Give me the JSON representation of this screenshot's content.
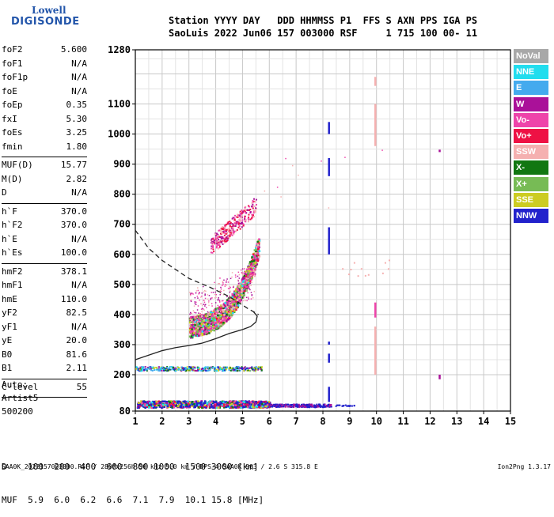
{
  "logo": {
    "line1": "Lowell",
    "line2": "DIGISONDE"
  },
  "header": {
    "labels": [
      "Station",
      "YYYY",
      "DAY",
      "DDD",
      "HHMMSS",
      "P1",
      "FFS",
      "S",
      "AXN",
      "PPS",
      "IGA",
      "PS"
    ],
    "line1": "Station YYYY DAY   DDD HHMMSS P1  FFS S AXN PPS IGA PS",
    "line2": "SaoLuis 2022 Jun06 157 003000 RSF     1 715 100 00- 11"
  },
  "params": [
    {
      "name": "foF2",
      "value": "5.600"
    },
    {
      "name": "foF1",
      "value": "N/A"
    },
    {
      "name": "foF1p",
      "value": "N/A"
    },
    {
      "name": "foE",
      "value": "N/A"
    },
    {
      "name": "foEp",
      "value": "0.35"
    },
    {
      "name": "fxI",
      "value": "5.30"
    },
    {
      "name": "foEs",
      "value": "3.25"
    },
    {
      "name": "fmin",
      "value": "1.80"
    },
    {
      "sep": true
    },
    {
      "name": "MUF(D)",
      "value": "15.77"
    },
    {
      "name": "M(D)",
      "value": "2.82"
    },
    {
      "name": "D",
      "value": "N/A"
    },
    {
      "sep": true
    },
    {
      "name": "h`F",
      "value": "370.0"
    },
    {
      "name": "h`F2",
      "value": "370.0"
    },
    {
      "name": "h`E",
      "value": "N/A"
    },
    {
      "name": "h`Es",
      "value": "100.0"
    },
    {
      "sep": true
    },
    {
      "name": "hmF2",
      "value": "378.1"
    },
    {
      "name": "hmF1",
      "value": "N/A"
    },
    {
      "name": "hmE",
      "value": "110.0"
    },
    {
      "name": "yF2",
      "value": "82.5"
    },
    {
      "name": "yF1",
      "value": "N/A"
    },
    {
      "name": "yE",
      "value": "20.0"
    },
    {
      "name": "B0",
      "value": "81.6"
    },
    {
      "name": "B1",
      "value": "2.11"
    },
    {
      "sep": true
    },
    {
      "name": "C-level",
      "value": "55"
    },
    {
      "sep": true
    }
  ],
  "auto": {
    "line1": "Auto:",
    "line2": "Artist5",
    "line3": "500200"
  },
  "muf_table": {
    "d_label": "D",
    "muf_label": "MUF",
    "d_values": [
      "100",
      "200",
      "400",
      "600",
      "800",
      "1000",
      "1500",
      "3000"
    ],
    "d_unit": "[km]",
    "muf_values": [
      "5.9",
      "6.0",
      "6.2",
      "6.6",
      "7.1",
      "7.9",
      "10.1",
      "15.8"
    ],
    "muf_unit": "[MHz]"
  },
  "footer": {
    "text": "SAA0K_2022157003000.RSF / 280fx256h 50 kHz 5.0 km / DPS-4 SAA0K 903 / 2.6 S 315.8 E",
    "version": "Ion2Png 1.3.17"
  },
  "legend": [
    {
      "label": "NoVal",
      "color": "#a8a8a8"
    },
    {
      "label": "NNE",
      "color": "#22ddee"
    },
    {
      "label": "E",
      "color": "#44aaee"
    },
    {
      "label": "W",
      "color": "#aa1199"
    },
    {
      "label": "Vo-",
      "color": "#ee44aa"
    },
    {
      "label": "Vo+",
      "color": "#ee1144"
    },
    {
      "label": "SSW",
      "color": "#f5b0b0"
    },
    {
      "label": "X-",
      "color": "#117711"
    },
    {
      "label": "X+",
      "color": "#77bb55"
    },
    {
      "label": "SSE",
      "color": "#cccc22"
    },
    {
      "label": "NNW",
      "color": "#2222cc"
    }
  ],
  "chart_data": {
    "type": "scatter",
    "title": "SaoLuis 2022 Jun06 157 003000",
    "xlabel": "",
    "ylabel": "",
    "x_ticks": [
      1,
      2,
      3,
      4,
      5,
      6,
      7,
      8,
      9,
      10,
      11,
      12,
      13,
      14,
      15
    ],
    "y_ticks": [
      80,
      200,
      300,
      400,
      500,
      600,
      700,
      800,
      900,
      1000,
      1100,
      1280
    ],
    "xlim": [
      1,
      15
    ],
    "ylim": [
      80,
      1280
    ],
    "grid": true,
    "legend_position": "right",
    "series": [
      {
        "kind": "line",
        "style": "dashed",
        "points": [
          [
            1.0,
            680
          ],
          [
            1.5,
            620
          ],
          [
            2.0,
            580
          ],
          [
            3.0,
            520
          ],
          [
            3.8,
            490
          ],
          [
            4.5,
            460
          ],
          [
            5.2,
            420
          ],
          [
            5.6,
            400
          ]
        ]
      },
      {
        "kind": "line",
        "style": "solid",
        "points": [
          [
            1.0,
            250
          ],
          [
            1.5,
            265
          ],
          [
            2.0,
            280
          ],
          [
            2.5,
            290
          ],
          [
            3.0,
            297
          ],
          [
            3.5,
            305
          ],
          [
            4.0,
            320
          ],
          [
            4.5,
            337
          ],
          [
            5.0,
            350
          ],
          [
            5.3,
            360
          ],
          [
            5.5,
            375
          ],
          [
            5.55,
            395
          ],
          [
            5.4,
            410
          ]
        ]
      },
      {
        "kind": "trace",
        "name": "Es",
        "color": "#2222cc",
        "x_range": [
          1.0,
          8.2
        ],
        "height": 100
      },
      {
        "kind": "trace",
        "name": "Es2",
        "color": "#2222cc",
        "x_range": [
          1.0,
          5.8
        ],
        "height": 130
      },
      {
        "kind": "trace",
        "name": "h2",
        "color": "#44aaee",
        "x_range": [
          1.0,
          5.7
        ],
        "height": 222
      },
      {
        "kind": "trace",
        "name": "F2",
        "color": "#ee44aa",
        "x_range": [
          3.0,
          5.6
        ],
        "heights": [
          370,
          640
        ]
      },
      {
        "kind": "trace",
        "name": "F2 2-hop",
        "color": "#aa1199",
        "x_range": [
          3.8,
          5.6
        ],
        "heights": [
          640,
          800
        ]
      },
      {
        "kind": "column",
        "name": "8.2 MHz",
        "color": "#2222cc",
        "x": 8.2,
        "heights": [
          100,
          1040
        ]
      },
      {
        "kind": "column",
        "name": "10 MHz",
        "color": "#f5b0b0",
        "x": 9.95,
        "heights": [
          200,
          1190
        ]
      },
      {
        "kind": "point",
        "name": "12.3 MHz",
        "color": "#aa1199",
        "x": 12.35,
        "heights": [
          190,
          945
        ]
      }
    ]
  }
}
